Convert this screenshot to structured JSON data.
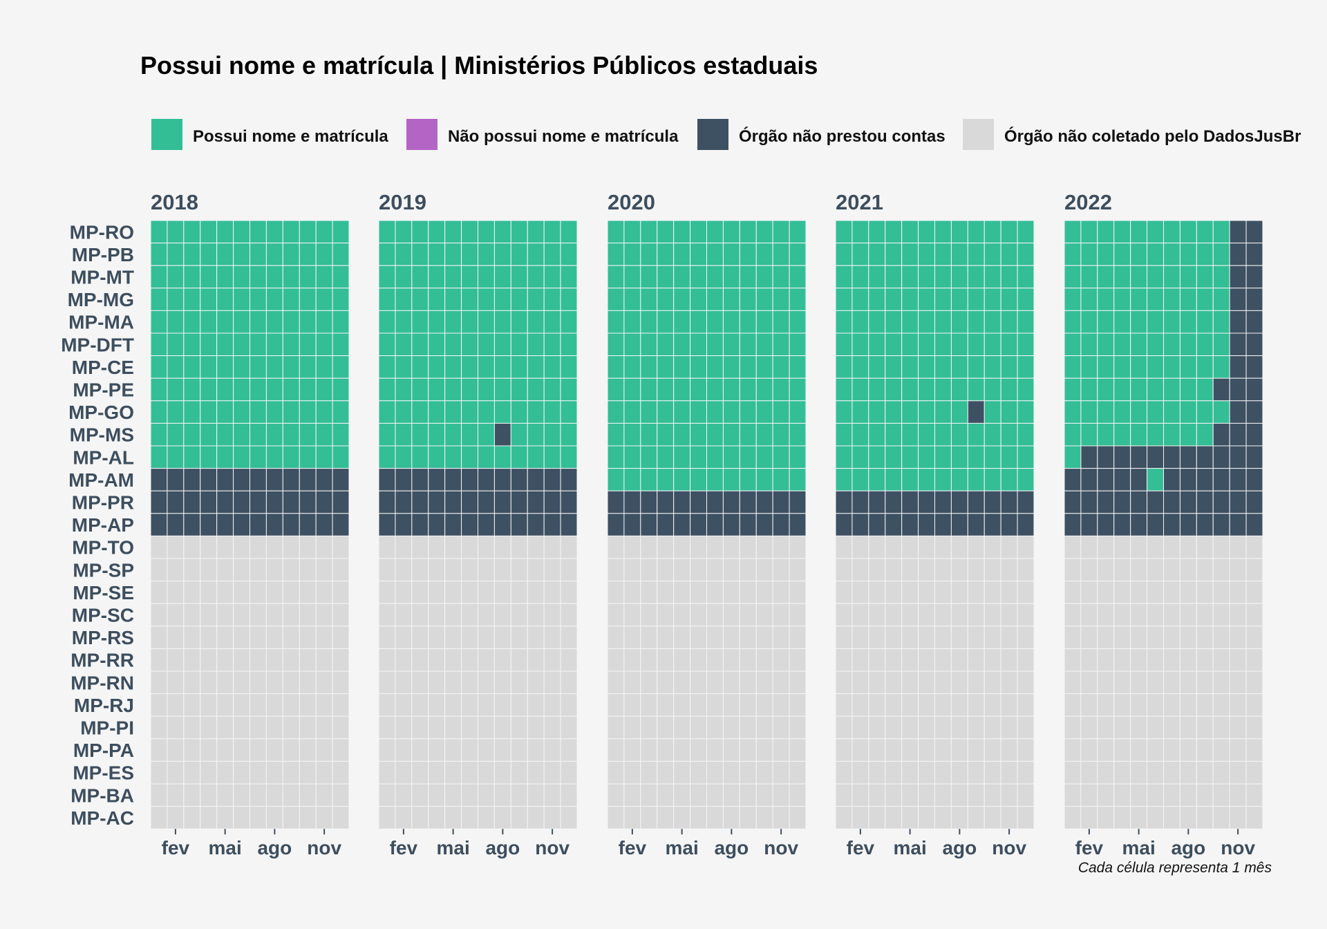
{
  "chart_data": {
    "type": "heatmap",
    "title": "Possui nome e matrícula | Ministérios Públicos estaduais",
    "caption": "Cada célula representa 1 mês",
    "legend_position": "top",
    "legend": [
      {
        "key": "A",
        "label": "Possui nome e matrícula",
        "color": "#33be96"
      },
      {
        "key": "B",
        "label": "Não possui nome e matrícula",
        "color": "#b365c6"
      },
      {
        "key": "C",
        "label": "Órgão não prestou contas",
        "color": "#3e5163"
      },
      {
        "key": "D",
        "label": "Órgão não coletado pelo DadosJusBr",
        "color": "#d9d9d9"
      }
    ],
    "rows": [
      "MP-RO",
      "MP-PB",
      "MP-MT",
      "MP-MG",
      "MP-MA",
      "MP-DFT",
      "MP-CE",
      "MP-PE",
      "MP-GO",
      "MP-MS",
      "MP-AL",
      "MP-AM",
      "MP-PR",
      "MP-AP",
      "MP-TO",
      "MP-SP",
      "MP-SE",
      "MP-SC",
      "MP-RS",
      "MP-RR",
      "MP-RN",
      "MP-RJ",
      "MP-PI",
      "MP-PA",
      "MP-ES",
      "MP-BA",
      "MP-AC"
    ],
    "x_tick_labels": [
      {
        "month": 2,
        "label": "fev"
      },
      {
        "month": 5,
        "label": "mai"
      },
      {
        "month": 8,
        "label": "ago"
      },
      {
        "month": 11,
        "label": "nov"
      }
    ],
    "facets": [
      {
        "year": "2018",
        "cells": [
          "AAAAAAAAAAAA",
          "AAAAAAAAAAAA",
          "AAAAAAAAAAAA",
          "AAAAAAAAAAAA",
          "AAAAAAAAAAAA",
          "AAAAAAAAAAAA",
          "AAAAAAAAAAAA",
          "AAAAAAAAAAAA",
          "AAAAAAAAAAAA",
          "AAAAAAAAAAAA",
          "AAAAAAAAAAAA",
          "CCCCCCCCCCCC",
          "CCCCCCCCCCCC",
          "CCCCCCCCCCCC",
          "DDDDDDDDDDDD",
          "DDDDDDDDDDDD",
          "DDDDDDDDDDDD",
          "DDDDDDDDDDDD",
          "DDDDDDDDDDDD",
          "DDDDDDDDDDDD",
          "DDDDDDDDDDDD",
          "DDDDDDDDDDDD",
          "DDDDDDDDDDDD",
          "DDDDDDDDDDDD",
          "DDDDDDDDDDDD",
          "DDDDDDDDDDDD",
          "DDDDDDDDDDDD"
        ]
      },
      {
        "year": "2019",
        "cells": [
          "AAAAAAAAAAAA",
          "AAAAAAAAAAAA",
          "AAAAAAAAAAAA",
          "AAAAAAAAAAAA",
          "AAAAAAAAAAAA",
          "AAAAAAAAAAAA",
          "AAAAAAAAAAAA",
          "AAAAAAAAAAAA",
          "AAAAAAAAAAAA",
          "AAAAAAACAAAA",
          "AAAAAAAAAAAA",
          "CCCCCCCCCCCC",
          "CCCCCCCCCCCC",
          "CCCCCCCCCCCC",
          "DDDDDDDDDDDD",
          "DDDDDDDDDDDD",
          "DDDDDDDDDDDD",
          "DDDDDDDDDDDD",
          "DDDDDDDDDDDD",
          "DDDDDDDDDDDD",
          "DDDDDDDDDDDD",
          "DDDDDDDDDDDD",
          "DDDDDDDDDDDD",
          "DDDDDDDDDDDD",
          "DDDDDDDDDDDD",
          "DDDDDDDDDDDD",
          "DDDDDDDDDDDD"
        ]
      },
      {
        "year": "2020",
        "cells": [
          "AAAAAAAAAAAA",
          "AAAAAAAAAAAA",
          "AAAAAAAAAAAA",
          "AAAAAAAAAAAA",
          "AAAAAAAAAAAA",
          "AAAAAAAAAAAA",
          "AAAAAAAAAAAA",
          "AAAAAAAAAAAA",
          "AAAAAAAAAAAA",
          "AAAAAAAAAAAA",
          "AAAAAAAAAAAA",
          "AAAAAAAAAAAA",
          "CCCCCCCCCCCC",
          "CCCCCCCCCCCC",
          "DDDDDDDDDDDD",
          "DDDDDDDDDDDD",
          "DDDDDDDDDDDD",
          "DDDDDDDDDDDD",
          "DDDDDDDDDDDD",
          "DDDDDDDDDDDD",
          "DDDDDDDDDDDD",
          "DDDDDDDDDDDD",
          "DDDDDDDDDDDD",
          "DDDDDDDDDDDD",
          "DDDDDDDDDDDD",
          "DDDDDDDDDDDD",
          "DDDDDDDDDDDD"
        ]
      },
      {
        "year": "2021",
        "cells": [
          "AAAAAAAAAAAA",
          "AAAAAAAAAAAA",
          "AAAAAAAAAAAA",
          "AAAAAAAAAAAA",
          "AAAAAAAAAAAA",
          "AAAAAAAAAAAA",
          "AAAAAAAAAAAA",
          "AAAAAAAAAAAA",
          "AAAAAAAACAAA",
          "AAAAAAAAAAAA",
          "AAAAAAAAAAAA",
          "AAAAAAAAAAAA",
          "CCCCCCCCCCCC",
          "CCCCCCCCCCCC",
          "DDDDDDDDDDDD",
          "DDDDDDDDDDDD",
          "DDDDDDDDDDDD",
          "DDDDDDDDDDDD",
          "DDDDDDDDDDDD",
          "DDDDDDDDDDDD",
          "DDDDDDDDDDDD",
          "DDDDDDDDDDDD",
          "DDDDDDDDDDDD",
          "DDDDDDDDDDDD",
          "DDDDDDDDDDDD",
          "DDDDDDDDDDDD",
          "DDDDDDDDDDDD"
        ]
      },
      {
        "year": "2022",
        "cells": [
          "AAAAAAAAAACC",
          "AAAAAAAAAACC",
          "AAAAAAAAAACC",
          "AAAAAAAAAACC",
          "AAAAAAAAAACC",
          "AAAAAAAAAACC",
          "AAAAAAAAAACC",
          "AAAAAAAAACCC",
          "AAAAAAAAAACC",
          "AAAAAAAAACCC",
          "ACCCCCCCCCCC",
          "CCCCCACCCCCC",
          "CCCCCCCCCCCC",
          "CCCCCCCCCCCC",
          "DDDDDDDDDDDD",
          "DDDDDDDDDDDD",
          "DDDDDDDDDDDD",
          "DDDDDDDDDDDD",
          "DDDDDDDDDDDD",
          "DDDDDDDDDDDD",
          "DDDDDDDDDDDD",
          "DDDDDDDDDDDD",
          "DDDDDDDDDDDD",
          "DDDDDDDDDDDD",
          "DDDDDDDDDDDD",
          "DDDDDDDDDDDD",
          "DDDDDDDDDDDD"
        ]
      }
    ]
  }
}
